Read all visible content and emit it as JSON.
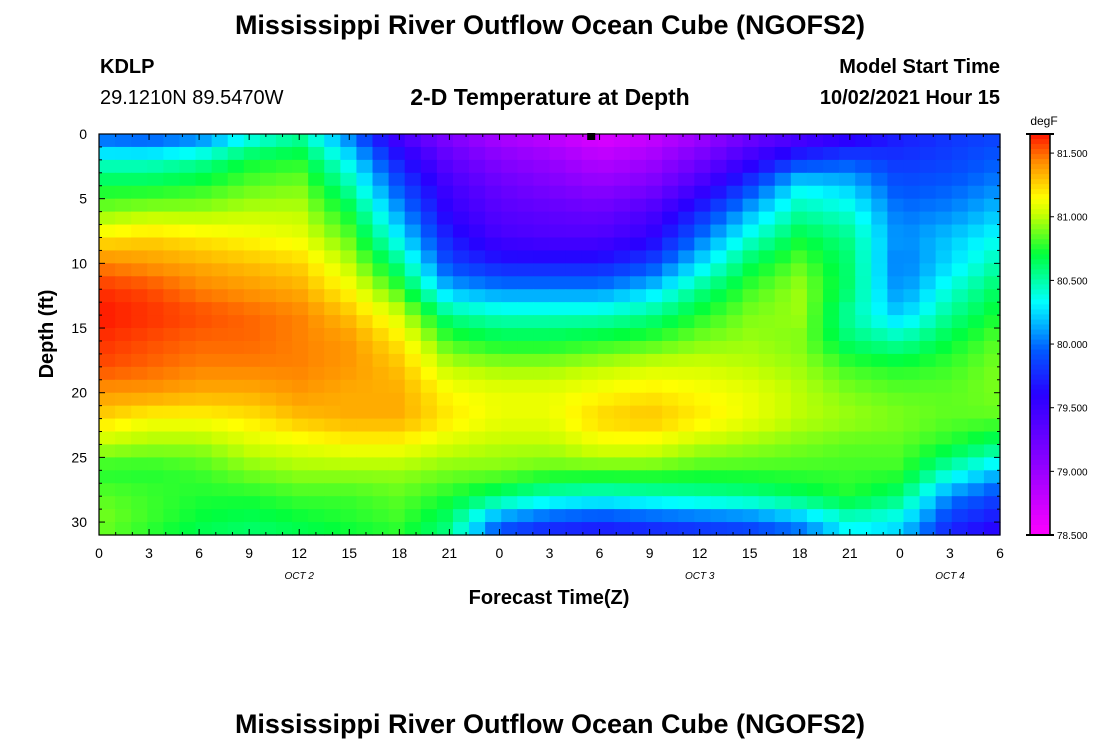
{
  "header": {
    "title": "Mississippi River Outflow Ocean Cube (NGOFS2)",
    "station_id": "KDLP",
    "station_coords": "29.1210N  89.5470W",
    "subtitle": "2-D Temperature at Depth",
    "model_start_label": "Model Start Time",
    "model_start_value": "10/02/2021 Hour 15"
  },
  "footer": {
    "title": "Mississippi River Outflow Ocean Cube (NGOFS2)"
  },
  "chart_data": {
    "type": "heatmap",
    "title": "2-D Temperature at Depth",
    "xlabel": "Forecast Time(Z)",
    "ylabel": "Depth (ft)",
    "x_ticks": [
      "0",
      "3",
      "6",
      "9",
      "12",
      "15",
      "18",
      "21",
      "0",
      "3",
      "6",
      "9",
      "12",
      "15",
      "18",
      "21",
      "0",
      "3",
      "6"
    ],
    "x_tick_hours": [
      0,
      3,
      6,
      9,
      12,
      15,
      18,
      21,
      24,
      27,
      30,
      33,
      36,
      39,
      42,
      45,
      48,
      51,
      54
    ],
    "date_labels": [
      {
        "label": "OCT 2",
        "hour": 12
      },
      {
        "label": "OCT 3",
        "hour": 36
      },
      {
        "label": "OCT 4",
        "hour": 51
      }
    ],
    "y_ticks": [
      0,
      5,
      10,
      15,
      20,
      25,
      30
    ],
    "xlim": [
      0,
      54
    ],
    "ylim": [
      0,
      31
    ],
    "colorbar": {
      "unit": "degF",
      "min": 78.5,
      "max": 81.65,
      "ticks": [
        "81.500",
        "81.000",
        "80.500",
        "80.000",
        "79.500",
        "79.000",
        "78.500"
      ],
      "tick_values": [
        81.5,
        81.0,
        80.5,
        80.0,
        79.5,
        79.0,
        78.5
      ]
    },
    "marker": {
      "hour": 29.5,
      "depth": 0
    },
    "depths": [
      0,
      2,
      4,
      6,
      8,
      10,
      12,
      14,
      16,
      18,
      20,
      22,
      24,
      26,
      28,
      30,
      31
    ],
    "times": [
      0,
      3,
      6,
      9,
      12,
      15,
      18,
      21,
      24,
      27,
      30,
      33,
      36,
      39,
      42,
      45,
      48,
      51,
      54
    ],
    "values": [
      [
        79.9,
        79.85,
        79.95,
        80.3,
        80.5,
        80.0,
        79.4,
        79.1,
        78.9,
        78.8,
        78.65,
        78.75,
        78.95,
        79.2,
        79.35,
        79.5,
        79.7,
        79.8,
        79.85
      ],
      [
        80.4,
        80.4,
        80.5,
        80.7,
        80.75,
        80.3,
        79.7,
        79.3,
        79.1,
        79.0,
        78.85,
        78.95,
        79.2,
        79.5,
        79.8,
        79.9,
        79.8,
        79.85,
        79.95
      ],
      [
        80.7,
        80.7,
        80.75,
        80.85,
        80.9,
        80.5,
        79.9,
        79.45,
        79.25,
        79.15,
        79.05,
        79.15,
        79.45,
        79.85,
        80.3,
        80.2,
        79.9,
        79.95,
        80.05
      ],
      [
        80.9,
        80.95,
        80.95,
        81.0,
        81.0,
        80.7,
        80.1,
        79.55,
        79.35,
        79.3,
        79.25,
        79.4,
        79.75,
        80.15,
        80.5,
        80.4,
        80.0,
        80.05,
        80.2
      ],
      [
        81.2,
        81.25,
        81.2,
        81.15,
        81.1,
        80.85,
        80.3,
        79.7,
        79.45,
        79.4,
        79.4,
        79.55,
        80.0,
        80.4,
        80.7,
        80.55,
        80.05,
        80.2,
        80.35
      ],
      [
        81.45,
        81.4,
        81.35,
        81.3,
        81.25,
        81.0,
        80.55,
        79.85,
        79.7,
        79.7,
        79.7,
        79.85,
        80.25,
        80.65,
        80.85,
        80.6,
        80.0,
        80.25,
        80.5
      ],
      [
        81.6,
        81.55,
        81.45,
        81.4,
        81.35,
        81.15,
        80.8,
        80.15,
        80.05,
        80.05,
        80.05,
        80.2,
        80.55,
        80.8,
        80.95,
        80.6,
        80.05,
        80.4,
        80.65
      ],
      [
        81.65,
        81.6,
        81.55,
        81.5,
        81.45,
        81.3,
        81.05,
        80.55,
        80.45,
        80.45,
        80.45,
        80.55,
        80.75,
        80.9,
        80.95,
        80.5,
        80.2,
        80.55,
        80.75
      ],
      [
        81.6,
        81.55,
        81.5,
        81.5,
        81.45,
        81.4,
        81.2,
        80.8,
        80.7,
        80.7,
        80.75,
        80.8,
        80.9,
        80.95,
        80.9,
        80.6,
        80.5,
        80.7,
        80.85
      ],
      [
        81.55,
        81.5,
        81.45,
        81.45,
        81.45,
        81.4,
        81.3,
        81.0,
        80.95,
        80.95,
        81.0,
        81.05,
        81.05,
        81.0,
        80.95,
        80.8,
        80.75,
        80.8,
        80.9
      ],
      [
        81.4,
        81.4,
        81.35,
        81.35,
        81.4,
        81.35,
        81.35,
        81.15,
        81.1,
        81.1,
        81.15,
        81.2,
        81.15,
        81.1,
        81.0,
        80.9,
        80.85,
        80.85,
        80.9
      ],
      [
        81.25,
        81.15,
        81.15,
        81.2,
        81.3,
        81.35,
        81.35,
        81.2,
        81.1,
        81.1,
        81.25,
        81.3,
        81.2,
        81.1,
        81.0,
        80.95,
        80.9,
        80.85,
        80.85
      ],
      [
        81.0,
        80.95,
        80.95,
        81.05,
        81.1,
        81.15,
        81.15,
        81.05,
        81.0,
        81.0,
        81.1,
        81.1,
        81.0,
        80.95,
        80.9,
        80.85,
        80.85,
        80.75,
        80.6
      ],
      [
        80.75,
        80.75,
        80.8,
        80.9,
        80.95,
        80.95,
        80.95,
        80.9,
        80.9,
        80.85,
        80.85,
        80.85,
        80.8,
        80.8,
        80.8,
        80.8,
        80.8,
        80.45,
        80.2
      ],
      [
        80.85,
        80.8,
        80.75,
        80.75,
        80.8,
        80.8,
        80.85,
        80.75,
        80.6,
        80.45,
        80.4,
        80.45,
        80.5,
        80.55,
        80.65,
        80.75,
        80.6,
        80.05,
        79.85
      ],
      [
        80.9,
        80.8,
        80.7,
        80.65,
        80.7,
        80.75,
        80.8,
        80.6,
        80.0,
        79.85,
        79.8,
        79.85,
        79.9,
        79.95,
        80.1,
        80.4,
        80.3,
        79.8,
        79.65
      ],
      [
        80.85,
        80.75,
        80.65,
        80.6,
        80.65,
        80.7,
        80.75,
        80.55,
        79.85,
        79.7,
        79.65,
        79.7,
        79.75,
        79.8,
        79.95,
        80.3,
        80.2,
        79.7,
        79.55
      ]
    ]
  }
}
